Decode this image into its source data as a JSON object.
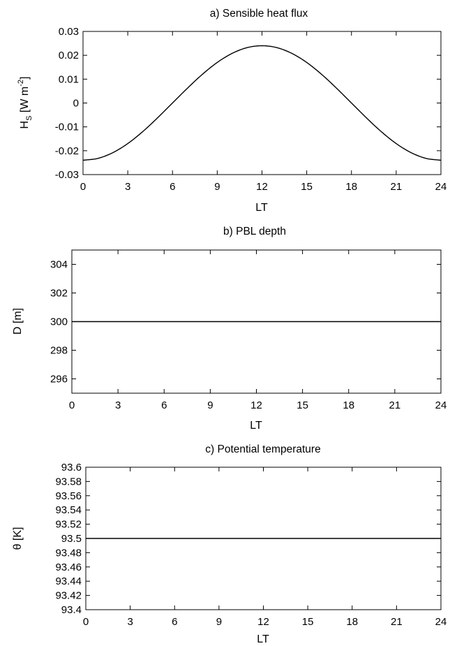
{
  "chart_data": [
    {
      "type": "line",
      "title": "a) Sensible heat flux",
      "xlabel": "LT",
      "ylabel": "H_S [W m^-2]",
      "ylabel_parts": {
        "main": "H",
        "sub": "S",
        "unit_open": " [W m",
        "sup": "-2",
        "unit_close": "]"
      },
      "xlim": [
        0,
        24
      ],
      "ylim": [
        -0.03,
        0.03
      ],
      "xticks": [
        0,
        3,
        6,
        9,
        12,
        15,
        18,
        21,
        24
      ],
      "xtick_labels": [
        "0",
        "3",
        "6",
        "9",
        "12",
        "15",
        "18",
        "21",
        "24"
      ],
      "yticks": [
        -0.03,
        -0.02,
        -0.01,
        0,
        0.01,
        0.02,
        0.03
      ],
      "ytick_labels": [
        "-0.03",
        "-0.02",
        "-0.01",
        "0",
        "0.01",
        "0.02",
        "0.03"
      ],
      "grid": false,
      "series": [
        {
          "x": [
            0,
            1,
            2,
            3,
            4,
            5,
            6,
            7,
            8,
            9,
            10,
            11,
            12,
            13,
            14,
            15,
            16,
            17,
            18,
            19,
            20,
            21,
            22,
            23,
            24
          ],
          "y": [
            -0.024,
            -0.0232,
            -0.0208,
            -0.017,
            -0.012,
            -0.0062,
            0.0,
            0.0062,
            0.012,
            0.017,
            0.0208,
            0.0232,
            0.024,
            0.0232,
            0.0208,
            0.017,
            0.012,
            0.0062,
            0.0,
            -0.0062,
            -0.012,
            -0.017,
            -0.0208,
            -0.0232,
            -0.024
          ]
        }
      ]
    },
    {
      "type": "line",
      "title": "b) PBL depth",
      "xlabel": "LT",
      "ylabel": "D [m]",
      "xlim": [
        0,
        24
      ],
      "ylim": [
        295,
        305
      ],
      "xticks": [
        0,
        3,
        6,
        9,
        12,
        15,
        18,
        21,
        24
      ],
      "xtick_labels": [
        "0",
        "3",
        "6",
        "9",
        "12",
        "15",
        "18",
        "21",
        "24"
      ],
      "yticks": [
        296,
        298,
        300,
        302,
        304
      ],
      "ytick_labels": [
        "296",
        "298",
        "300",
        "302",
        "304"
      ],
      "grid": false,
      "series": [
        {
          "x": [
            0,
            24
          ],
          "y": [
            300,
            300
          ]
        }
      ]
    },
    {
      "type": "line",
      "title": "c) Potential temperature",
      "xlabel": "LT",
      "ylabel": "θ [K]",
      "xlim": [
        0,
        24
      ],
      "ylim": [
        93.4,
        93.6
      ],
      "xticks": [
        0,
        3,
        6,
        9,
        12,
        15,
        18,
        21,
        24
      ],
      "xtick_labels": [
        "0",
        "3",
        "6",
        "9",
        "12",
        "15",
        "18",
        "21",
        "24"
      ],
      "yticks": [
        93.4,
        93.42,
        93.44,
        93.46,
        93.48,
        93.5,
        93.52,
        93.54,
        93.56,
        93.58,
        93.6
      ],
      "ytick_labels": [
        "93.4",
        "93.42",
        "93.44",
        "93.46",
        "93.48",
        "93.5",
        "93.52",
        "93.54",
        "93.56",
        "93.58",
        "93.6"
      ],
      "grid": false,
      "series": [
        {
          "x": [
            0,
            24
          ],
          "y": [
            93.5,
            93.5
          ]
        }
      ]
    }
  ]
}
